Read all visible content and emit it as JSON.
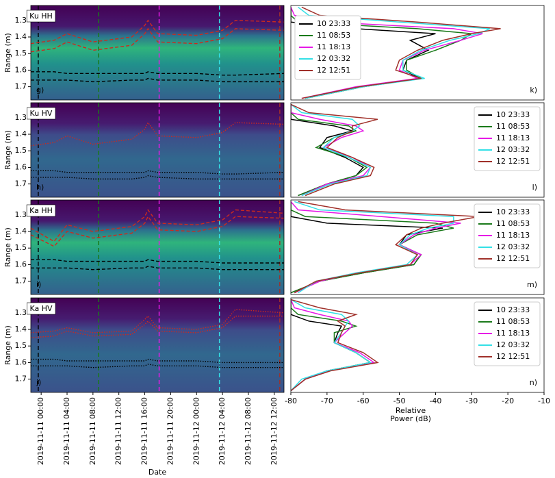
{
  "chart_data": [
    {
      "type": "heatmap",
      "label": "Ku HH",
      "panel": "g)",
      "ylabel": "Range (m)",
      "xlim": [
        -1.6,
        37.5
      ],
      "ylim": [
        1.21,
        1.78
      ],
      "yticks": [
        1.3,
        1.4,
        1.5,
        1.6,
        1.7
      ],
      "x": [
        -1.6,
        2,
        4,
        8,
        14,
        16,
        16.5,
        18,
        24,
        28,
        30,
        37.5
      ],
      "traces": [
        {
          "color": "#cc2a1e",
          "dash": "dashed",
          "values": [
            1.44,
            1.42,
            1.38,
            1.43,
            1.4,
            1.33,
            1.3,
            1.38,
            1.39,
            1.36,
            1.3,
            1.31
          ]
        },
        {
          "color": "#cc2a1e",
          "dash": "dashed",
          "values": [
            1.49,
            1.47,
            1.43,
            1.48,
            1.45,
            1.38,
            1.35,
            1.43,
            1.44,
            1.41,
            1.35,
            1.36
          ]
        },
        {
          "color": "#000000",
          "dash": "dashed",
          "values": [
            1.61,
            1.61,
            1.62,
            1.62,
            1.62,
            1.62,
            1.61,
            1.62,
            1.62,
            1.63,
            1.63,
            1.62
          ]
        },
        {
          "color": "#000000",
          "dash": "dashed",
          "values": [
            1.66,
            1.66,
            1.66,
            1.67,
            1.66,
            1.66,
            1.65,
            1.66,
            1.66,
            1.67,
            1.67,
            1.67
          ]
        }
      ],
      "markers": [
        {
          "x": -0.45,
          "color": "#000000"
        },
        {
          "x": 8.88,
          "color": "#1a7a1a"
        },
        {
          "x": 18.22,
          "color": "#e619e6"
        },
        {
          "x": 27.53,
          "color": "#33e0e6"
        },
        {
          "x": 36.85,
          "color": "#a0302a"
        }
      ]
    },
    {
      "type": "heatmap",
      "label": "Ku HV",
      "panel": "h)",
      "ylabel": "Range (m)",
      "xlim": [
        -1.6,
        37.5
      ],
      "ylim": [
        1.21,
        1.78
      ],
      "yticks": [
        1.3,
        1.4,
        1.5,
        1.6,
        1.7
      ],
      "x": [
        -1.6,
        2,
        4,
        8,
        14,
        16,
        16.5,
        18,
        24,
        28,
        30,
        37.5
      ],
      "traces": [
        {
          "color": "#cc2a1e",
          "dash": "dotted",
          "values": [
            1.47,
            1.45,
            1.41,
            1.46,
            1.43,
            1.37,
            1.33,
            1.41,
            1.42,
            1.39,
            1.33,
            1.34
          ]
        },
        {
          "color": "#000000",
          "dash": "dotted",
          "values": [
            1.62,
            1.62,
            1.63,
            1.63,
            1.63,
            1.63,
            1.62,
            1.63,
            1.63,
            1.64,
            1.64,
            1.63
          ]
        },
        {
          "color": "#000000",
          "dash": "dotted",
          "values": [
            1.66,
            1.66,
            1.66,
            1.67,
            1.67,
            1.66,
            1.65,
            1.66,
            1.67,
            1.67,
            1.67,
            1.67
          ]
        }
      ],
      "markers": [
        {
          "x": -0.45,
          "color": "#000000"
        },
        {
          "x": 8.88,
          "color": "#1a7a1a"
        },
        {
          "x": 18.22,
          "color": "#e619e6"
        },
        {
          "x": 27.53,
          "color": "#33e0e6"
        },
        {
          "x": 36.85,
          "color": "#a0302a"
        }
      ]
    },
    {
      "type": "heatmap",
      "label": "Ka HH",
      "panel": "i)",
      "ylabel": "Range (m)",
      "xlim": [
        -1.6,
        37.5
      ],
      "ylim": [
        1.21,
        1.78
      ],
      "yticks": [
        1.3,
        1.4,
        1.5,
        1.6,
        1.7
      ],
      "x": [
        -1.6,
        2,
        4,
        8,
        14,
        16,
        16.5,
        18,
        24,
        28,
        30,
        37.5
      ],
      "traces": [
        {
          "color": "#cc2a1e",
          "dash": "dashed",
          "values": [
            1.38,
            1.46,
            1.36,
            1.4,
            1.37,
            1.31,
            1.27,
            1.35,
            1.36,
            1.33,
            1.27,
            1.29
          ]
        },
        {
          "color": "#cc2a1e",
          "dash": "dashed",
          "values": [
            1.42,
            1.49,
            1.4,
            1.44,
            1.41,
            1.35,
            1.31,
            1.39,
            1.4,
            1.37,
            1.31,
            1.32
          ]
        },
        {
          "color": "#000000",
          "dash": "dashed",
          "values": [
            1.57,
            1.57,
            1.58,
            1.58,
            1.58,
            1.58,
            1.57,
            1.58,
            1.58,
            1.59,
            1.59,
            1.59
          ]
        },
        {
          "color": "#000000",
          "dash": "dashed",
          "values": [
            1.62,
            1.62,
            1.62,
            1.63,
            1.62,
            1.62,
            1.61,
            1.62,
            1.62,
            1.63,
            1.63,
            1.63
          ]
        }
      ],
      "markers": [
        {
          "x": -0.45,
          "color": "#000000"
        },
        {
          "x": 8.88,
          "color": "#1a7a1a"
        },
        {
          "x": 18.22,
          "color": "#e619e6"
        },
        {
          "x": 27.53,
          "color": "#33e0e6"
        },
        {
          "x": 36.85,
          "color": "#a0302a"
        }
      ]
    },
    {
      "type": "heatmap",
      "label": "Ka HV",
      "panel": "j)",
      "ylabel": "Range (m)",
      "xlabel": "Date",
      "xlim": [
        -1.6,
        37.5
      ],
      "ylim": [
        1.21,
        1.78
      ],
      "yticks": [
        1.3,
        1.4,
        1.5,
        1.6,
        1.7
      ],
      "xticks": [
        {
          "value": 0,
          "label": "2019-11-11 00:00"
        },
        {
          "value": 4,
          "label": "2019-11-11 04:00"
        },
        {
          "value": 8,
          "label": "2019-11-11 08:00"
        },
        {
          "value": 12,
          "label": "2019-11-11 12:00"
        },
        {
          "value": 16,
          "label": "2019-11-11 16:00"
        },
        {
          "value": 20,
          "label": "2019-11-11 20:00"
        },
        {
          "value": 24,
          "label": "2019-11-12 00:00"
        },
        {
          "value": 28,
          "label": "2019-11-12 04:00"
        },
        {
          "value": 32,
          "label": "2019-11-12 08:00"
        },
        {
          "value": 36,
          "label": "2019-11-12 12:00"
        }
      ],
      "x": [
        -1.6,
        2,
        4,
        8,
        14,
        16,
        16.5,
        18,
        24,
        28,
        30,
        37.5
      ],
      "traces": [
        {
          "color": "#cc2a1e",
          "dash": "dotted",
          "values": [
            1.42,
            1.41,
            1.39,
            1.42,
            1.41,
            1.34,
            1.32,
            1.39,
            1.4,
            1.37,
            1.28,
            1.3
          ]
        },
        {
          "color": "#cc2a1e",
          "dash": "dotted",
          "values": [
            1.45,
            1.44,
            1.41,
            1.44,
            1.43,
            1.37,
            1.35,
            1.41,
            1.42,
            1.39,
            1.32,
            1.32
          ]
        },
        {
          "color": "#000000",
          "dash": "dotted",
          "values": [
            1.58,
            1.58,
            1.59,
            1.59,
            1.59,
            1.59,
            1.58,
            1.59,
            1.59,
            1.6,
            1.6,
            1.6
          ]
        },
        {
          "color": "#000000",
          "dash": "dotted",
          "values": [
            1.62,
            1.62,
            1.62,
            1.63,
            1.62,
            1.62,
            1.61,
            1.62,
            1.62,
            1.63,
            1.63,
            1.63
          ]
        }
      ],
      "markers": [
        {
          "x": -0.45,
          "color": "#000000"
        },
        {
          "x": 8.88,
          "color": "#1a7a1a"
        },
        {
          "x": 18.22,
          "color": "#e619e6"
        },
        {
          "x": 27.53,
          "color": "#33e0e6"
        },
        {
          "x": 36.85,
          "color": "#a0302a"
        }
      ]
    },
    {
      "type": "line",
      "panel": "k)",
      "legend": "lower left",
      "xlim": [
        -80,
        -10
      ],
      "ylim": [
        1.21,
        1.78
      ],
      "y": [
        1.22,
        1.27,
        1.31,
        1.35,
        1.38,
        1.42,
        1.48,
        1.54,
        1.6,
        1.65,
        1.7,
        1.77
      ],
      "series": [
        {
          "name": "10 23:33",
          "color": "#000000",
          "values": [
            -80,
            -80,
            -80,
            -62,
            -40,
            -47,
            -42,
            -48,
            -49,
            -44,
            -60,
            -76
          ]
        },
        {
          "name": "11 08:53",
          "color": "#1a7a1a",
          "values": [
            -80,
            -80,
            -78,
            -45,
            -30,
            -33,
            -40,
            -48,
            -48,
            -44,
            -60,
            -76
          ]
        },
        {
          "name": "11 18:13",
          "color": "#e619e6",
          "values": [
            -80,
            -79,
            -70,
            -35,
            -27,
            -33,
            -43,
            -49,
            -50,
            -45,
            -62,
            -77
          ]
        },
        {
          "name": "12 03:32",
          "color": "#33e0e6",
          "values": [
            -78,
            -75,
            -50,
            -25,
            -28,
            -36,
            -44,
            -49,
            -49,
            -43,
            -60,
            -76
          ]
        },
        {
          "name": "12 12:51",
          "color": "#a0302a",
          "values": [
            -77,
            -72,
            -45,
            -22,
            -30,
            -38,
            -45,
            -50,
            -51,
            -44,
            -61,
            -77
          ]
        }
      ]
    },
    {
      "type": "line",
      "panel": "l)",
      "legend": "upper right",
      "xlim": [
        -80,
        -10
      ],
      "ylim": [
        1.21,
        1.78
      ],
      "y": [
        1.22,
        1.27,
        1.31,
        1.35,
        1.38,
        1.42,
        1.48,
        1.54,
        1.6,
        1.65,
        1.7,
        1.77
      ],
      "series": [
        {
          "name": "10 23:33",
          "color": "#000000",
          "values": [
            -80,
            -80,
            -80,
            -68,
            -63,
            -70,
            -72,
            -65,
            -60,
            -62,
            -70,
            -78
          ]
        },
        {
          "name": "11 08:53",
          "color": "#1a7a1a",
          "values": [
            -80,
            -80,
            -78,
            -64,
            -62,
            -68,
            -73,
            -64,
            -59,
            -62,
            -70,
            -78
          ]
        },
        {
          "name": "11 18:13",
          "color": "#e619e6",
          "values": [
            -80,
            -80,
            -72,
            -62,
            -60,
            -66,
            -71,
            -63,
            -58,
            -60,
            -70,
            -77
          ]
        },
        {
          "name": "12 03:32",
          "color": "#33e0e6",
          "values": [
            -80,
            -77,
            -63,
            -61,
            -63,
            -68,
            -71,
            -64,
            -58,
            -59,
            -69,
            -77
          ]
        },
        {
          "name": "12 12:51",
          "color": "#a0302a",
          "values": [
            -80,
            -75,
            -56,
            -63,
            -63,
            -67,
            -70,
            -63,
            -57,
            -58,
            -68,
            -76
          ]
        }
      ]
    },
    {
      "type": "line",
      "panel": "m)",
      "legend": "upper right",
      "xlim": [
        -80,
        -10
      ],
      "ylim": [
        1.21,
        1.78
      ],
      "y": [
        1.22,
        1.27,
        1.31,
        1.35,
        1.38,
        1.42,
        1.48,
        1.54,
        1.6,
        1.65,
        1.7,
        1.77
      ],
      "series": [
        {
          "name": "10 23:33",
          "color": "#000000",
          "values": [
            -80,
            -80,
            -80,
            -70,
            -38,
            -48,
            -50,
            -44,
            -46,
            -60,
            -72,
            -80
          ]
        },
        {
          "name": "11 08:53",
          "color": "#1a7a1a",
          "values": [
            -80,
            -80,
            -76,
            -40,
            -35,
            -45,
            -50,
            -44,
            -46,
            -60,
            -72,
            -80
          ]
        },
        {
          "name": "11 18:13",
          "color": "#e619e6",
          "values": [
            -80,
            -78,
            -55,
            -33,
            -40,
            -46,
            -50,
            -44,
            -47,
            -62,
            -72,
            -79
          ]
        },
        {
          "name": "12 03:32",
          "color": "#33e0e6",
          "values": [
            -79,
            -72,
            -35,
            -35,
            -42,
            -47,
            -50,
            -45,
            -48,
            -62,
            -73,
            -78
          ]
        },
        {
          "name": "12 12:51",
          "color": "#a0302a",
          "values": [
            -78,
            -65,
            -28,
            -38,
            -44,
            -48,
            -51,
            -45,
            -47,
            -61,
            -73,
            -79
          ]
        }
      ]
    },
    {
      "type": "line",
      "panel": "n)",
      "legend": "upper right",
      "xlim": [
        -80,
        -10
      ],
      "ylim": [
        1.21,
        1.78
      ],
      "xticks": [
        -80,
        -70,
        -60,
        -50,
        -40,
        -30,
        -20,
        -10
      ],
      "xlabel": [
        "Relative",
        "Power (dB)"
      ],
      "y": [
        1.22,
        1.27,
        1.31,
        1.35,
        1.38,
        1.42,
        1.48,
        1.54,
        1.6,
        1.65,
        1.7,
        1.77
      ],
      "series": [
        {
          "name": "10 23:33",
          "color": "#000000",
          "values": [
            -80,
            -80,
            -80,
            -75,
            -66,
            -67,
            -68,
            -62,
            -58,
            -70,
            -76,
            -80
          ]
        },
        {
          "name": "11 08:53",
          "color": "#1a7a1a",
          "values": [
            -80,
            -80,
            -78,
            -66,
            -62,
            -68,
            -68,
            -62,
            -58,
            -70,
            -76,
            -80
          ]
        },
        {
          "name": "11 18:13",
          "color": "#e619e6",
          "values": [
            -80,
            -79,
            -72,
            -64,
            -63,
            -65,
            -68,
            -61,
            -57,
            -70,
            -76,
            -80
          ]
        },
        {
          "name": "12 03:32",
          "color": "#33e0e6",
          "values": [
            -80,
            -76,
            -66,
            -64,
            -65,
            -66,
            -68,
            -62,
            -58,
            -70,
            -77,
            -80
          ]
        },
        {
          "name": "12 12:51",
          "color": "#a0302a",
          "values": [
            -80,
            -72,
            -62,
            -67,
            -65,
            -66,
            -67,
            -60,
            -56,
            -69,
            -76,
            -80
          ]
        }
      ]
    }
  ]
}
